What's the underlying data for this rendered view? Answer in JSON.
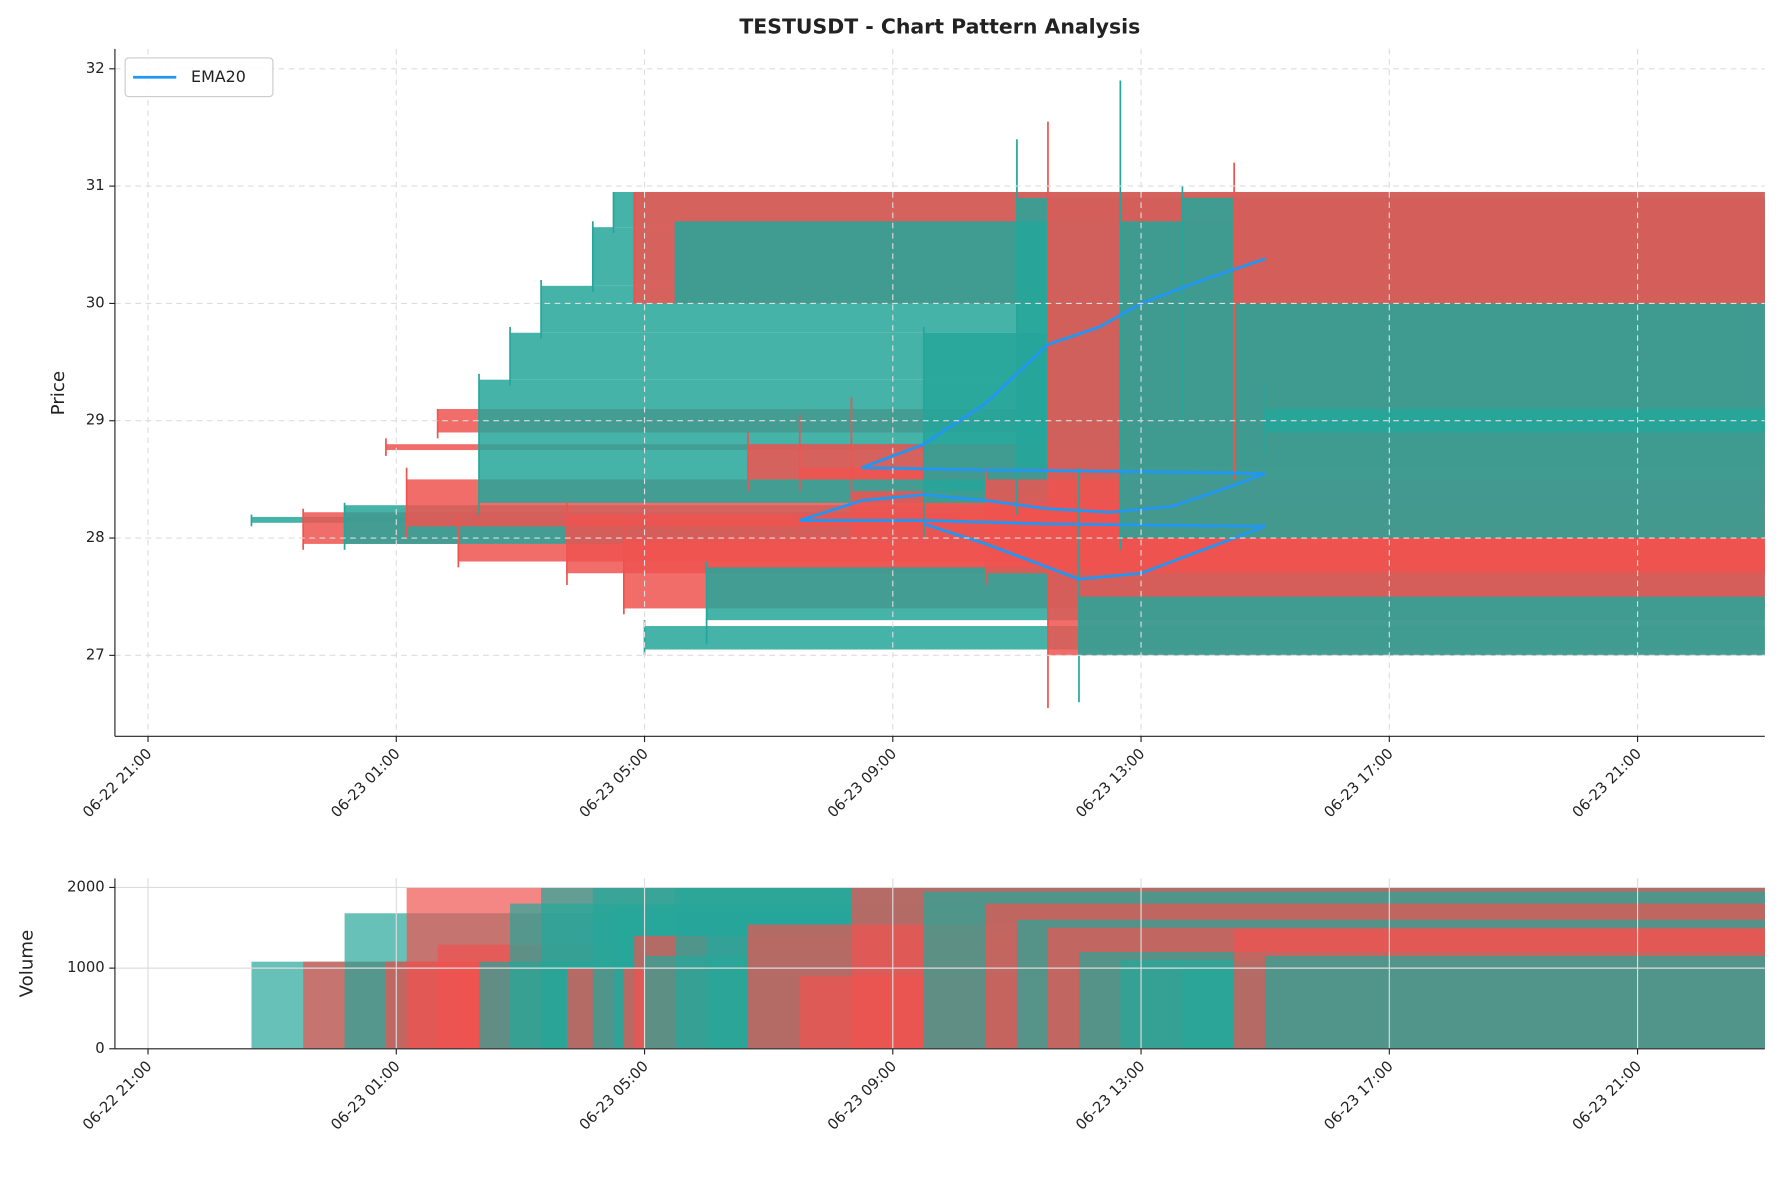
{
  "chart_data": [
    {
      "type": "candlestick",
      "title": "TESTUSDT - Chart Pattern Analysis",
      "ylabel": "Price",
      "up_color": "#26a69a",
      "down_color": "#ef5350",
      "grid": true,
      "legend": "upper left",
      "x": [
        "06-22 22:40",
        "06-22 23:30",
        "06-23 00:10",
        "06-23 00:50",
        "06-23 01:10",
        "06-23 01:40",
        "06-23 02:00",
        "06-23 02:20",
        "06-23 02:50",
        "06-23 03:20",
        "06-23 03:45",
        "06-23 04:10",
        "06-23 04:30",
        "06-23 04:40",
        "06-23 04:50",
        "06-23 05:00",
        "06-23 05:30",
        "06-23 06:00",
        "06-23 06:40",
        "06-23 07:30",
        "06-23 08:20",
        "06-23 09:30",
        "06-23 10:30",
        "06-23 11:00",
        "06-23 11:30",
        "06-23 12:00",
        "06-23 12:40",
        "06-23 13:40",
        "06-23 14:30",
        "06-23 15:00"
      ],
      "open": [
        28.13,
        28.22,
        27.95,
        28.8,
        28.5,
        29.1,
        27.95,
        28.3,
        29.35,
        29.75,
        28.2,
        30.15,
        30.65,
        28.0,
        30.95,
        27.05,
        30.0,
        27.3,
        28.8,
        28.6,
        28.4,
        28.3,
        28.5,
        28.6,
        30.9,
        27.0,
        28.0,
        30.7,
        30.9,
        28.9
      ],
      "high": [
        28.2,
        28.25,
        28.3,
        28.85,
        28.6,
        29.1,
        28.2,
        29.4,
        29.8,
        30.2,
        28.3,
        30.7,
        30.95,
        28.1,
        30.95,
        27.3,
        30.7,
        27.8,
        28.9,
        29.05,
        29.2,
        29.8,
        28.6,
        31.4,
        31.55,
        28.6,
        31.9,
        31.0,
        31.2,
        29.3
      ],
      "low": [
        28.1,
        27.9,
        27.9,
        28.7,
        28.0,
        28.85,
        27.75,
        28.2,
        29.3,
        29.7,
        27.6,
        30.1,
        30.6,
        27.35,
        30.0,
        27.0,
        30.0,
        27.1,
        28.4,
        28.4,
        27.85,
        28.0,
        27.6,
        28.2,
        26.55,
        26.6,
        27.9,
        29.0,
        28.5,
        28.7
      ],
      "close": [
        28.18,
        27.95,
        28.28,
        28.75,
        28.1,
        28.9,
        27.8,
        29.35,
        29.75,
        30.15,
        27.7,
        30.65,
        30.95,
        27.4,
        30.0,
        27.25,
        30.7,
        27.75,
        28.5,
        28.5,
        28.0,
        29.75,
        27.7,
        30.9,
        27.0,
        27.5,
        30.7,
        30.9,
        30.0,
        29.1
      ],
      "overlays": [
        {
          "name": "EMA20",
          "color": "#2196f3",
          "x": [
            "06-23 07:30",
            "06-23 08:30",
            "06-23 09:30",
            "06-23 10:30",
            "06-23 11:30",
            "06-23 12:30",
            "06-23 13:30",
            "06-23 14:30",
            "06-23 15:00",
            null,
            "06-23 08:30",
            "06-23 10:30",
            "06-23 12:30",
            "06-23 15:00",
            null,
            "06-23 08:30",
            "06-23 09:30",
            "06-23 10:30",
            "06-23 11:30",
            "06-23 12:20",
            "06-23 13:00",
            "06-23 14:00",
            "06-23 15:00",
            null,
            "06-23 07:30",
            "06-23 09:30",
            "06-23 11:30",
            "06-23 15:00",
            null,
            "06-23 09:30",
            "06-23 10:30",
            "06-23 12:00",
            "06-23 13:00",
            "06-23 14:00",
            "06-23 15:00"
          ],
          "values": [
            28.15,
            28.32,
            28.37,
            28.32,
            28.25,
            28.22,
            28.27,
            28.45,
            28.55,
            null,
            28.6,
            28.58,
            28.57,
            28.55,
            null,
            28.6,
            28.8,
            29.15,
            29.65,
            29.8,
            30.0,
            30.2,
            30.38,
            null,
            28.15,
            28.15,
            28.12,
            28.1,
            null,
            28.12,
            27.95,
            27.65,
            27.7,
            27.9,
            28.1
          ]
        }
      ],
      "xlim": [
        "06-22 20:28",
        "06-23 23:03"
      ],
      "ylim": [
        26.31,
        32.17
      ],
      "yticks": [
        27,
        28,
        29,
        30,
        31,
        32
      ],
      "xticks": [
        "06-22 21:00",
        "06-23 01:00",
        "06-23 05:00",
        "06-23 09:00",
        "06-23 13:00",
        "06-23 17:00",
        "06-23 21:00"
      ]
    },
    {
      "type": "volume",
      "ylabel": "Volume",
      "grid": true,
      "values": [
        1080,
        1080,
        1680,
        1080,
        2000,
        1290,
        1000,
        1080,
        1800,
        2000,
        1000,
        2000,
        1750,
        1000,
        1400,
        1150,
        2000,
        1500,
        1540,
        900,
        2000,
        1950,
        1800,
        1600,
        1500,
        1200,
        1100,
        1000,
        1480,
        1150
      ],
      "ylim": [
        0,
        2113
      ],
      "yticks": [
        0,
        1000,
        2000
      ],
      "xticks": [
        "06-22 21:00",
        "06-23 01:00",
        "06-23 05:00",
        "06-23 09:00",
        "06-23 13:00",
        "06-23 17:00",
        "06-23 21:00"
      ]
    }
  ]
}
